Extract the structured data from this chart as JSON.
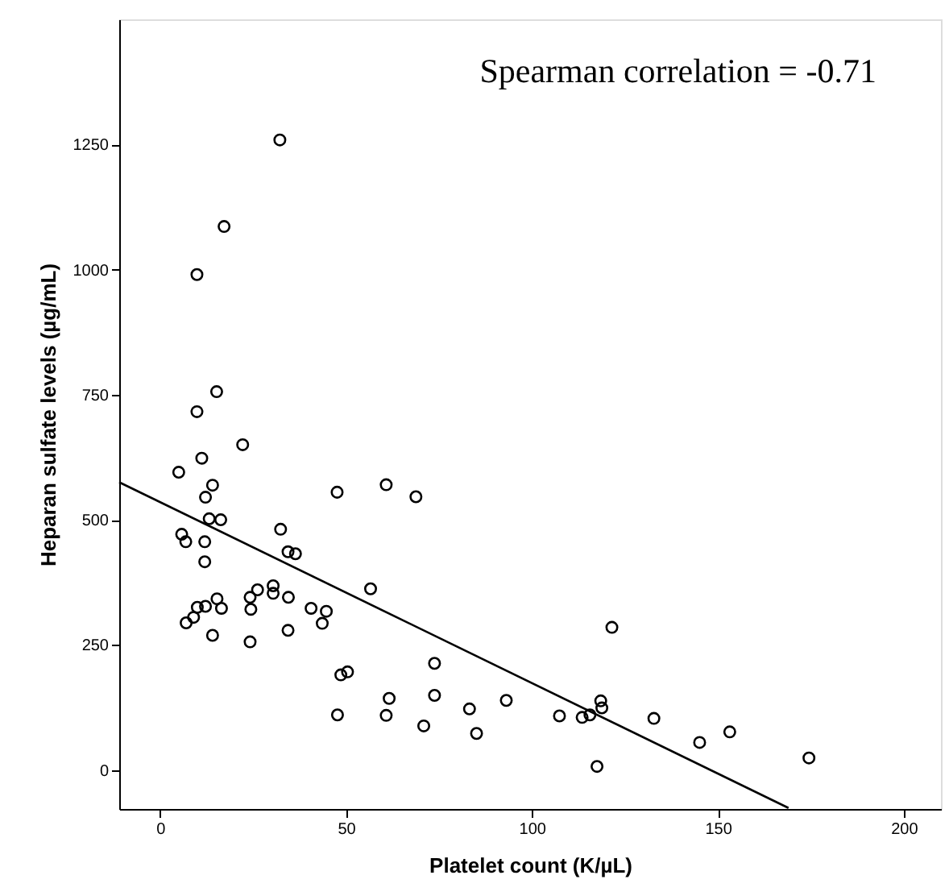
{
  "chart_data": {
    "type": "scatter",
    "xlabel": "Platelet count (K/µL)",
    "ylabel": "Heparan sulfate levels (µg/mL)",
    "xlim": [
      -11,
      210
    ],
    "ylim": [
      -78,
      1500
    ],
    "xticks": [
      0,
      50,
      100,
      150,
      200
    ],
    "yticks": [
      0,
      250,
      500,
      750,
      1000,
      1250
    ],
    "grid": false,
    "annotations": [
      "Spearman correlation = -0.71"
    ],
    "series": [
      {
        "marker": "circle",
        "color": "#000000",
        "x": [
          32.2,
          17.2,
          9.9,
          15.2,
          9.9,
          22.2,
          11.2,
          5.0,
          14.1,
          12.2,
          13.2,
          16.3,
          5.8,
          6.9,
          12.0,
          12.0,
          32.4,
          34.4,
          36.4,
          47.6,
          60.8,
          68.8,
          56.6,
          15.3,
          10.0,
          12.2,
          16.5,
          7.0,
          9.0,
          14.1,
          24.2,
          26.2,
          24.4,
          24.2,
          30.4,
          30.4,
          34.5,
          34.4,
          40.6,
          44.7,
          43.6,
          48.6,
          50.4,
          47.7,
          61.6,
          60.8,
          73.8,
          73.8,
          83.2,
          85.1,
          70.9,
          93.1,
          121.5,
          107.4,
          113.5,
          115.6,
          118.5,
          118.8,
          132.8,
          145.1,
          153.2,
          174.5,
          117.5
        ],
        "values": [
          1259,
          1086,
          990,
          756,
          716,
          650,
          623,
          595,
          569,
          545,
          502,
          500,
          471,
          456,
          456,
          416,
          481,
          436,
          432,
          555,
          570,
          546,
          362,
          342,
          325,
          327,
          323,
          294,
          305,
          269,
          345,
          360,
          321,
          256,
          368,
          353,
          345,
          279,
          323,
          317,
          293,
          190,
          196,
          110,
          143,
          109,
          213,
          149,
          122,
          73,
          88,
          139,
          285,
          108,
          105,
          110,
          138,
          124,
          103,
          55,
          76,
          24,
          7
        ]
      },
      {
        "type": "line",
        "color": "#000000",
        "x": [
          -11,
          169
        ],
        "values": [
          575,
          -76
        ]
      }
    ]
  }
}
